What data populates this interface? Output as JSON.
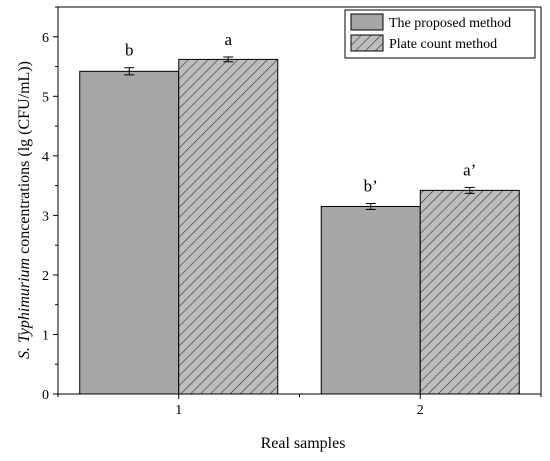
{
  "chart_data": {
    "type": "bar",
    "categories": [
      "1",
      "2"
    ],
    "series": [
      {
        "name": "The proposed method",
        "values": [
          5.42,
          3.15
        ],
        "errors": [
          0.06,
          0.05
        ],
        "significance": [
          "b",
          "b’"
        ],
        "fill": "#a6a6a6",
        "pattern": "solid"
      },
      {
        "name": "Plate count method",
        "values": [
          5.62,
          3.42
        ],
        "errors": [
          0.04,
          0.05
        ],
        "significance": [
          "a",
          "a’"
        ],
        "fill": "#bdbdbd",
        "pattern": "diagonal-hatch"
      }
    ],
    "title": "",
    "xlabel": "Real samples",
    "ylabel_italic": "S. Typhimurium",
    "ylabel_rest": " concentrations (lg (CFU/mL))",
    "ylim": [
      0,
      6.5
    ],
    "yticks": [
      0,
      1,
      2,
      3,
      4,
      5,
      6
    ],
    "grid": false,
    "legend_position": "top-right"
  }
}
